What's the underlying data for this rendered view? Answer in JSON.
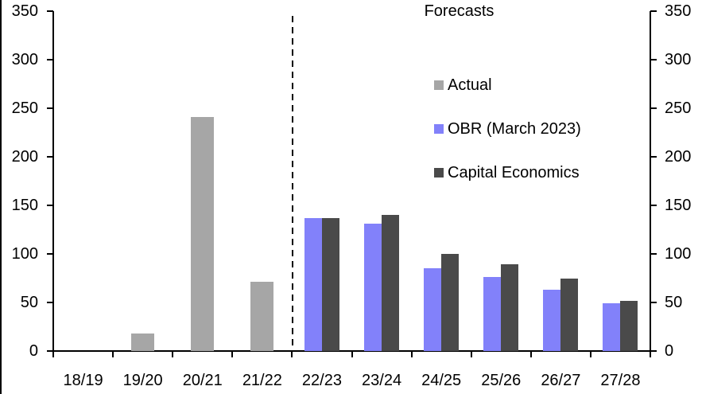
{
  "chart_data": {
    "type": "bar",
    "title": "Forecasts",
    "categories": [
      "18/19",
      "19/20",
      "20/21",
      "21/22",
      "22/23",
      "23/24",
      "24/25",
      "25/26",
      "26/27",
      "27/28"
    ],
    "series": [
      {
        "name": "Actual",
        "color": "#A6A6A6",
        "values": [
          0,
          18,
          241,
          71,
          null,
          null,
          null,
          null,
          null,
          null
        ]
      },
      {
        "name": "OBR (March 2023)",
        "color": "#8281FA",
        "values": [
          null,
          null,
          null,
          null,
          137,
          131,
          85,
          76,
          63,
          49
        ]
      },
      {
        "name": "Capital Economics",
        "color": "#4A4A4A",
        "values": [
          null,
          null,
          null,
          null,
          137,
          140,
          100,
          89,
          75,
          52
        ]
      }
    ],
    "xlabel": "",
    "ylabel": "",
    "ylim": [
      0,
      350
    ],
    "yticks": [
      "0",
      "50",
      "100",
      "150",
      "200",
      "250",
      "300",
      "350"
    ],
    "y_axis_sides": [
      "left",
      "right"
    ],
    "grid": false,
    "forecast_separator": {
      "style": "dashed",
      "after_category": "21/22"
    },
    "legend_position": "inside-upper-right"
  },
  "annotations": {
    "forecasts_label": "Forecasts"
  },
  "legend": {
    "items": [
      {
        "label": "Actual",
        "color": "#A6A6A6"
      },
      {
        "label": "OBR (March 2023)",
        "color": "#8281FA"
      },
      {
        "label": "Capital Economics",
        "color": "#4A4A4A"
      }
    ]
  },
  "colors": {
    "background": "#FFFFFF",
    "axis": "#000000",
    "text": "#000000",
    "edge_artifact": "#000000"
  }
}
